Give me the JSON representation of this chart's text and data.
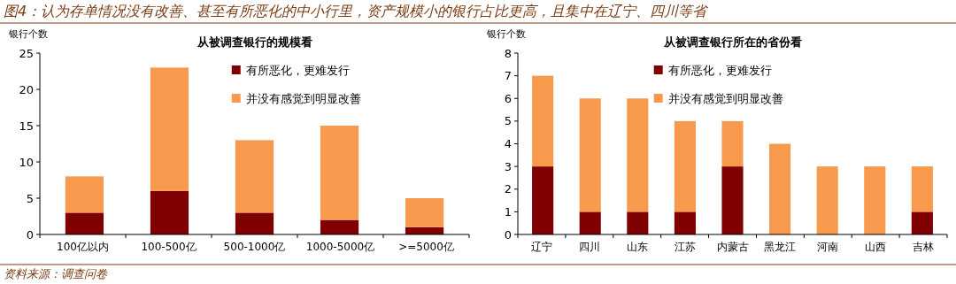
{
  "chart_data": [
    {
      "type": "bar",
      "title": "从被调查银行的规模看",
      "ylabel": "银行个数",
      "annotations": [
        "图4：认为存单情况没有改善、甚至有所恶化的中小行里，资产规模小的银行占比更高，且集中在辽宁、四川等省"
      ],
      "categories": [
        "100亿以内",
        "100-500亿",
        "500-1000亿",
        "1000-5000亿",
        ">=5000亿"
      ],
      "stacked": true,
      "series": [
        {
          "name": "有所恶化，更难发行",
          "color": "#7f0000",
          "values": [
            3,
            6,
            3,
            2,
            1
          ]
        },
        {
          "name": "并没有感觉到明显改善",
          "color": "#f79a4d",
          "values": [
            5,
            17,
            10,
            13,
            4
          ]
        }
      ],
      "ylim": [
        0,
        25
      ],
      "yticks": [
        0,
        5,
        10,
        15,
        20,
        25
      ],
      "legend": "top",
      "grid": false
    },
    {
      "type": "bar",
      "title": "从被调查银行所在的省份看",
      "ylabel": "银行个数",
      "annotations": [
        "资料来源：调查问卷"
      ],
      "categories": [
        "辽宁",
        "四川",
        "山东",
        "江苏",
        "内蒙古",
        "黑龙江",
        "河南",
        "山西",
        "吉林"
      ],
      "stacked": true,
      "series": [
        {
          "name": "有所恶化，更难发行",
          "color": "#7f0000",
          "values": [
            3,
            1,
            1,
            1,
            3,
            0,
            0,
            0,
            1
          ]
        },
        {
          "name": "并没有感觉到明显改善",
          "color": "#f79a4d",
          "values": [
            4,
            5,
            5,
            4,
            2,
            4,
            3,
            3,
            2
          ]
        }
      ],
      "ylim": [
        0,
        8
      ],
      "yticks": [
        0,
        1,
        2,
        3,
        4,
        5,
        6,
        7,
        8
      ],
      "legend": "top",
      "grid": false
    }
  ]
}
